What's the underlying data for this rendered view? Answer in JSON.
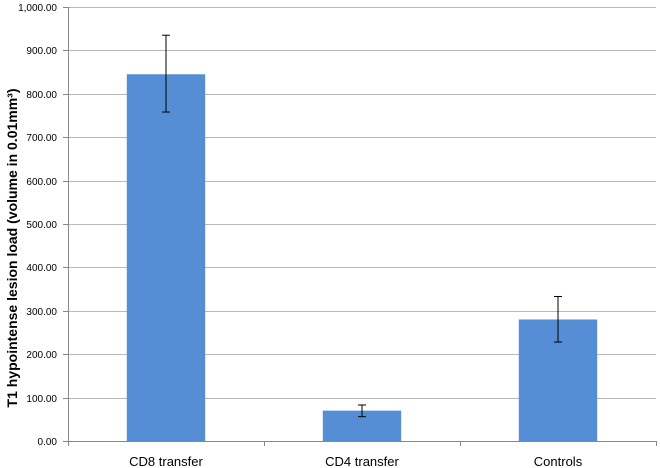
{
  "chart_data": {
    "type": "bar",
    "title": "",
    "xlabel": "",
    "ylabel": "T1 hypointense lesion load (volume in 0.01mm³)",
    "categories": [
      "CD8 transfer",
      "CD4 transfer",
      "Controls"
    ],
    "series": [
      {
        "values": [
          845,
          70,
          280
        ],
        "error_upper": [
          935,
          83,
          333
        ],
        "error_lower": [
          758,
          56,
          228
        ]
      }
    ],
    "ylim": [
      0,
      1000
    ],
    "yticks": [
      "0.00",
      "100.00",
      "200.00",
      "300.00",
      "400.00",
      "500.00",
      "600.00",
      "700.00",
      "800.00",
      "900.00",
      "1,000.00"
    ],
    "ytick_values": [
      0,
      100,
      200,
      300,
      400,
      500,
      600,
      700,
      800,
      900,
      1000
    ],
    "grid": true,
    "legend": "none",
    "colors": {
      "bar": "#558ed5",
      "grid": "#b8b8b8"
    }
  }
}
